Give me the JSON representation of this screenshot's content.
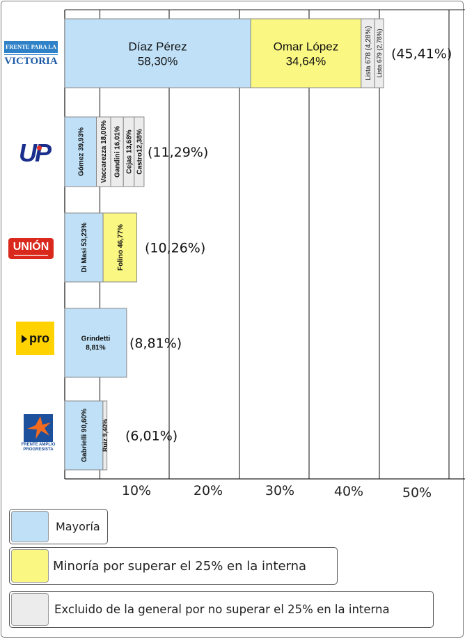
{
  "colors": {
    "mayoria": "#bfe0f7",
    "minoria": "#fbf783",
    "excluido": "#ececec"
  },
  "parties": [
    {
      "logo_icon": "frente-para-la-victoria-logo",
      "logo_text": [
        "FRENTE PARA LA",
        "VICTORIA"
      ]
    },
    {
      "logo_icon": "up-logo",
      "logo_text": [
        "UP"
      ]
    },
    {
      "logo_icon": "union-logo",
      "logo_text": [
        "UNIÓN"
      ]
    },
    {
      "logo_icon": "pro-logo",
      "logo_text": [
        "pro"
      ]
    },
    {
      "logo_icon": "frente-amplio-progresista-logo",
      "logo_text": [
        "FRENTE AMPLIO",
        "PROGRESISTA"
      ]
    }
  ],
  "legend": [
    {
      "label": "Mayoría",
      "status": "mayoria"
    },
    {
      "label": "Minoría por superar el 25% en la interna",
      "status": "minoria"
    },
    {
      "label": "Excluido de la general por no superar el 25% en la interna",
      "status": "excluido"
    }
  ],
  "chart_data": {
    "type": "bar",
    "orientation": "horizontal-stacked",
    "x_ticks": [
      "10%",
      "20%",
      "30%",
      "40%",
      "50%"
    ],
    "xlim": [
      0,
      55
    ],
    "bars": [
      {
        "total_label": "(45,41%)",
        "total": 45.41,
        "segments": [
          {
            "name": "Díaz Pérez",
            "share": "58,30%",
            "value": 26.47,
            "status": "mayoria",
            "label_style": "horizontal"
          },
          {
            "name": "Omar López",
            "share": "34,64%",
            "value": 15.73,
            "status": "minoria",
            "label_style": "horizontal"
          },
          {
            "label": "Lista 678 (4,28%)",
            "value": 1.94,
            "status": "excluido",
            "label_style": "vertical"
          },
          {
            "label": "Lista 679 (2,78%)",
            "value": 1.26,
            "status": "excluido",
            "label_style": "vertical"
          }
        ]
      },
      {
        "total_label": "(11,29%)",
        "total": 11.29,
        "segments": [
          {
            "label": "Gómez 39,93%",
            "value": 4.51,
            "status": "mayoria",
            "label_style": "vertical"
          },
          {
            "label": "Vaccarezza 18,00%",
            "value": 2.03,
            "status": "excluido",
            "label_style": "vertical"
          },
          {
            "label": "Gandini 16,01%",
            "value": 1.81,
            "status": "excluido",
            "label_style": "vertical"
          },
          {
            "label": "Cejas 13,68%",
            "value": 1.54,
            "status": "excluido",
            "label_style": "vertical"
          },
          {
            "label": "Castro12,38%",
            "value": 1.4,
            "status": "excluido",
            "label_style": "vertical"
          }
        ]
      },
      {
        "total_label": "(10,26%)",
        "total": 10.26,
        "segments": [
          {
            "label": "Di Masi 53,23%",
            "value": 5.46,
            "status": "mayoria",
            "label_style": "vertical"
          },
          {
            "label": "Folino 46,77%",
            "value": 4.8,
            "status": "minoria",
            "label_style": "vertical"
          }
        ]
      },
      {
        "total_label": "(8,81%)",
        "total": 8.81,
        "segments": [
          {
            "name": "Grindetti",
            "share": "8,81%",
            "value": 8.81,
            "status": "mayoria",
            "label_style": "horizontal"
          }
        ]
      },
      {
        "total_label": "(6,01%)",
        "total": 6.01,
        "segments": [
          {
            "label": "Gabrielli 90,60%",
            "value": 5.44,
            "status": "mayoria",
            "label_style": "vertical"
          },
          {
            "label": "Ruiz 9,40%",
            "value": 0.57,
            "status": "excluido",
            "label_style": "vertical"
          }
        ]
      }
    ]
  }
}
